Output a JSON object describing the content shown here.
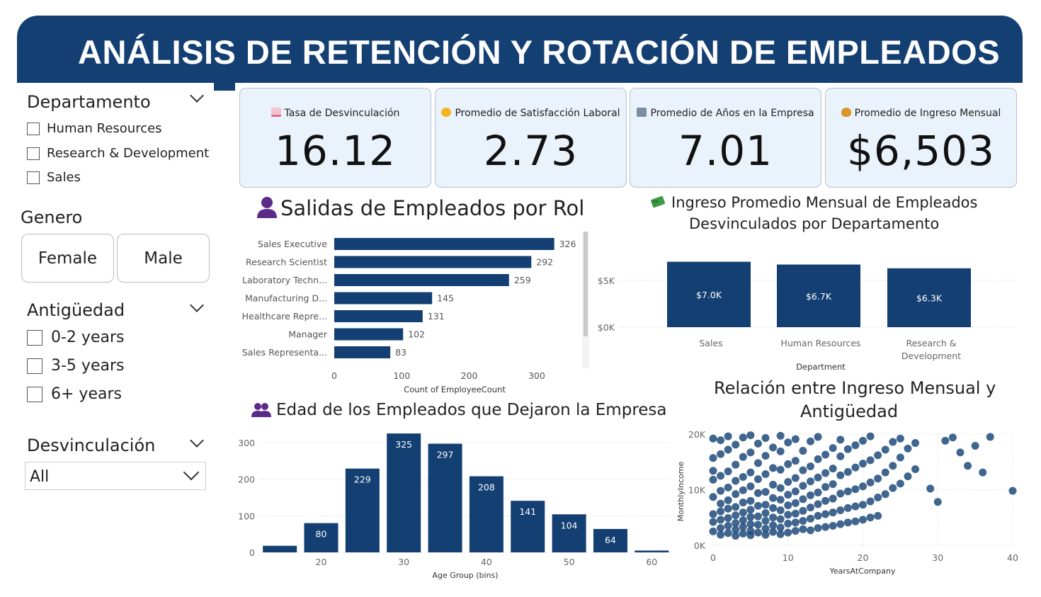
{
  "header": {
    "title": "ANÁLISIS DE RETENCIÓN Y ROTACIÓN DE EMPLEADOS"
  },
  "slicers": {
    "departamento": {
      "title": "Departamento",
      "options": [
        "Human Resources",
        "Research & Development",
        "Sales"
      ]
    },
    "genero": {
      "title": "Genero",
      "options": [
        "Female",
        "Male"
      ]
    },
    "antiguedad": {
      "title": "Antigüedad",
      "options": [
        "0-2 years",
        "3-5 years",
        "6+ years"
      ]
    },
    "desvinculacion": {
      "title": "Desvinculación",
      "selected": "All"
    }
  },
  "kpis": [
    {
      "label": "Tasa de Desvinculación",
      "value": "16.12",
      "icon": "chart-down-icon",
      "icon_color": "#e06b8b"
    },
    {
      "label": "Promedio de Satisfacción Laboral",
      "value": "2.73",
      "icon": "smile-icon",
      "icon_color": "#f2b41c"
    },
    {
      "label": "Promedio de Años en la Empresa",
      "value": "7.01",
      "icon": "building-icon",
      "icon_color": "#7c8ea3"
    },
    {
      "label": "Promedio de Ingreso Mensual",
      "value": "$6,503",
      "icon": "money-bag-icon",
      "icon_color": "#d9962a"
    }
  ],
  "colors": {
    "primary": "#133f72",
    "kpi_bg": "#eaf2fb",
    "scatter": "#1f4a7a"
  },
  "role_chart": {
    "title": "Salidas de Empleados por Rol",
    "chart_data": {
      "type": "bar",
      "orientation": "horizontal",
      "categories": [
        "Sales Executive",
        "Research Scientist",
        "Laboratory Techn...",
        "Manufacturing D...",
        "Healthcare Repre...",
        "Manager",
        "Sales Representa..."
      ],
      "values": [
        326,
        292,
        259,
        145,
        131,
        102,
        83
      ],
      "xlabel": "Count of EmployeeCount",
      "xticks": [
        "0",
        "100",
        "200",
        "300"
      ],
      "xlim": [
        0,
        350
      ]
    }
  },
  "dept_chart": {
    "title_line1": "Ingreso Promedio Mensual de Empleados",
    "title_line2": "Desvinculados por Departamento",
    "chart_data": {
      "type": "bar",
      "categories": [
        "Sales",
        "Human Resources",
        "Research & Development"
      ],
      "category_lines": [
        [
          "Sales"
        ],
        [
          "Human Resources"
        ],
        [
          "Research &",
          "Development"
        ]
      ],
      "values": [
        7000,
        6700,
        6300
      ],
      "labels": [
        "$7.0K",
        "$6.7K",
        "$6.3K"
      ],
      "xlabel": "Department",
      "yticks": [
        "$0K",
        "$5K"
      ],
      "ytick_values": [
        0,
        5000
      ],
      "ylim": [
        0,
        7000
      ]
    }
  },
  "age_chart": {
    "title": "Edad de los Empleados que Dejaron la Empresa",
    "chart_data": {
      "type": "bar",
      "x": [
        15,
        20,
        25,
        30,
        35,
        40,
        45,
        50,
        55,
        60
      ],
      "values": [
        18,
        80,
        229,
        325,
        297,
        208,
        141,
        104,
        64,
        5
      ],
      "labels": [
        "",
        "80",
        "229",
        "325",
        "297",
        "208",
        "141",
        "104",
        "64",
        ""
      ],
      "xlabel": "Age Group (bins)",
      "xticks": [
        "20",
        "30",
        "40",
        "50",
        "60"
      ],
      "xtick_values": [
        20,
        30,
        40,
        50,
        60
      ],
      "yticks": [
        "0",
        "100",
        "200",
        "300"
      ],
      "ytick_values": [
        0,
        100,
        200,
        300
      ],
      "ylim": [
        0,
        325
      ]
    }
  },
  "scatter_chart": {
    "title_line1": "Relación entre Ingreso Mensual y",
    "title_line2": "Antigüedad",
    "chart_data": {
      "type": "scatter",
      "xlabel": "YearsAtCompany",
      "ylabel": "MonthlyIncome",
      "xticks": [
        "0",
        "10",
        "20",
        "30",
        "40"
      ],
      "xtick_values": [
        0,
        10,
        20,
        30,
        40
      ],
      "yticks": [
        "0K",
        "10K",
        "20K"
      ],
      "ytick_values": [
        0,
        10000,
        20000
      ],
      "xlim": [
        0,
        40
      ],
      "ylim": [
        0,
        20000
      ],
      "points": [
        [
          0,
          2500
        ],
        [
          0,
          4200
        ],
        [
          0,
          5600
        ],
        [
          0,
          8700
        ],
        [
          0,
          11800
        ],
        [
          0,
          13400
        ],
        [
          0,
          15700
        ],
        [
          0,
          19200
        ],
        [
          1,
          1900
        ],
        [
          1,
          3100
        ],
        [
          1,
          4600
        ],
        [
          1,
          6100
        ],
        [
          1,
          7500
        ],
        [
          1,
          9800
        ],
        [
          1,
          12500
        ],
        [
          1,
          16400
        ],
        [
          1,
          18900
        ],
        [
          2,
          2200
        ],
        [
          2,
          3500
        ],
        [
          2,
          4900
        ],
        [
          2,
          6600
        ],
        [
          2,
          8100
        ],
        [
          2,
          10400
        ],
        [
          2,
          13300
        ],
        [
          2,
          17200
        ],
        [
          2,
          19600
        ],
        [
          3,
          1700
        ],
        [
          3,
          2800
        ],
        [
          3,
          4000
        ],
        [
          3,
          5400
        ],
        [
          3,
          6900
        ],
        [
          3,
          9200
        ],
        [
          3,
          11600
        ],
        [
          3,
          14500
        ],
        [
          3,
          18100
        ],
        [
          4,
          2100
        ],
        [
          4,
          3300
        ],
        [
          4,
          4500
        ],
        [
          4,
          5900
        ],
        [
          4,
          7700
        ],
        [
          4,
          9900
        ],
        [
          4,
          12300
        ],
        [
          4,
          15900
        ],
        [
          4,
          19400
        ],
        [
          5,
          1800
        ],
        [
          5,
          2600
        ],
        [
          5,
          3800
        ],
        [
          5,
          5100
        ],
        [
          5,
          6400
        ],
        [
          5,
          8000
        ],
        [
          5,
          10600
        ],
        [
          5,
          13100
        ],
        [
          5,
          16700
        ],
        [
          5,
          19800
        ],
        [
          6,
          2300
        ],
        [
          6,
          3700
        ],
        [
          6,
          5200
        ],
        [
          6,
          7100
        ],
        [
          6,
          9400
        ],
        [
          6,
          11900
        ],
        [
          6,
          14800
        ],
        [
          6,
          18300
        ],
        [
          7,
          1900
        ],
        [
          7,
          3000
        ],
        [
          7,
          4400
        ],
        [
          7,
          5800
        ],
        [
          7,
          7300
        ],
        [
          7,
          9600
        ],
        [
          7,
          12800
        ],
        [
          7,
          16100
        ],
        [
          7,
          19300
        ],
        [
          8,
          2400
        ],
        [
          8,
          3600
        ],
        [
          8,
          5000
        ],
        [
          8,
          6700
        ],
        [
          8,
          8500
        ],
        [
          8,
          10900
        ],
        [
          8,
          13900
        ],
        [
          8,
          17600
        ],
        [
          9,
          2000
        ],
        [
          9,
          3200
        ],
        [
          9,
          4700
        ],
        [
          9,
          6300
        ],
        [
          9,
          8200
        ],
        [
          9,
          10300
        ],
        [
          9,
          13600
        ],
        [
          9,
          16900
        ],
        [
          9,
          19700
        ],
        [
          10,
          2300
        ],
        [
          10,
          3900
        ],
        [
          10,
          5500
        ],
        [
          10,
          7200
        ],
        [
          10,
          9100
        ],
        [
          10,
          11400
        ],
        [
          10,
          14600
        ],
        [
          10,
          18500
        ],
        [
          11,
          2600
        ],
        [
          11,
          4100
        ],
        [
          11,
          5700
        ],
        [
          11,
          7600
        ],
        [
          11,
          9700
        ],
        [
          11,
          12100
        ],
        [
          11,
          15200
        ],
        [
          11,
          19100
        ],
        [
          12,
          2900
        ],
        [
          12,
          4400
        ],
        [
          12,
          6200
        ],
        [
          12,
          8300
        ],
        [
          12,
          10700
        ],
        [
          12,
          13500
        ],
        [
          12,
          17000
        ],
        [
          13,
          2700
        ],
        [
          13,
          4800
        ],
        [
          13,
          6800
        ],
        [
          13,
          9000
        ],
        [
          13,
          11500
        ],
        [
          13,
          14200
        ],
        [
          13,
          18700
        ],
        [
          14,
          3100
        ],
        [
          14,
          5300
        ],
        [
          14,
          7400
        ],
        [
          14,
          9500
        ],
        [
          14,
          12200
        ],
        [
          14,
          15500
        ],
        [
          14,
          19500
        ],
        [
          15,
          3300
        ],
        [
          15,
          5600
        ],
        [
          15,
          8000
        ],
        [
          15,
          10500
        ],
        [
          15,
          13000
        ],
        [
          15,
          16300
        ],
        [
          16,
          3500
        ],
        [
          16,
          5900
        ],
        [
          16,
          8400
        ],
        [
          16,
          11000
        ],
        [
          16,
          13800
        ],
        [
          16,
          17500
        ],
        [
          17,
          3800
        ],
        [
          17,
          6300
        ],
        [
          17,
          9300
        ],
        [
          17,
          12600
        ],
        [
          17,
          16000
        ],
        [
          17,
          19000
        ],
        [
          18,
          4100
        ],
        [
          18,
          6700
        ],
        [
          18,
          9700
        ],
        [
          18,
          13200
        ],
        [
          18,
          17300
        ],
        [
          19,
          4300
        ],
        [
          19,
          7000
        ],
        [
          19,
          10100
        ],
        [
          19,
          14000
        ],
        [
          19,
          18000
        ],
        [
          20,
          4600
        ],
        [
          20,
          7300
        ],
        [
          20,
          10600
        ],
        [
          20,
          14700
        ],
        [
          20,
          18800
        ],
        [
          21,
          5000
        ],
        [
          21,
          7900
        ],
        [
          21,
          11300
        ],
        [
          21,
          15300
        ],
        [
          21,
          19600
        ],
        [
          22,
          5300
        ],
        [
          22,
          8600
        ],
        [
          22,
          12000
        ],
        [
          22,
          16200
        ],
        [
          23,
          9200
        ],
        [
          23,
          13100
        ],
        [
          23,
          17200
        ],
        [
          24,
          10300
        ],
        [
          24,
          14300
        ],
        [
          24,
          18600
        ],
        [
          25,
          11100
        ],
        [
          25,
          15800
        ],
        [
          25,
          19200
        ],
        [
          26,
          12400
        ],
        [
          26,
          17400
        ],
        [
          27,
          13700
        ],
        [
          27,
          18400
        ],
        [
          29,
          10200
        ],
        [
          30,
          7800
        ],
        [
          31,
          18800
        ],
        [
          32,
          19400
        ],
        [
          33,
          16700
        ],
        [
          34,
          14300
        ],
        [
          35,
          17900
        ],
        [
          36,
          13100
        ],
        [
          37,
          19500
        ],
        [
          40,
          9800
        ]
      ]
    }
  }
}
